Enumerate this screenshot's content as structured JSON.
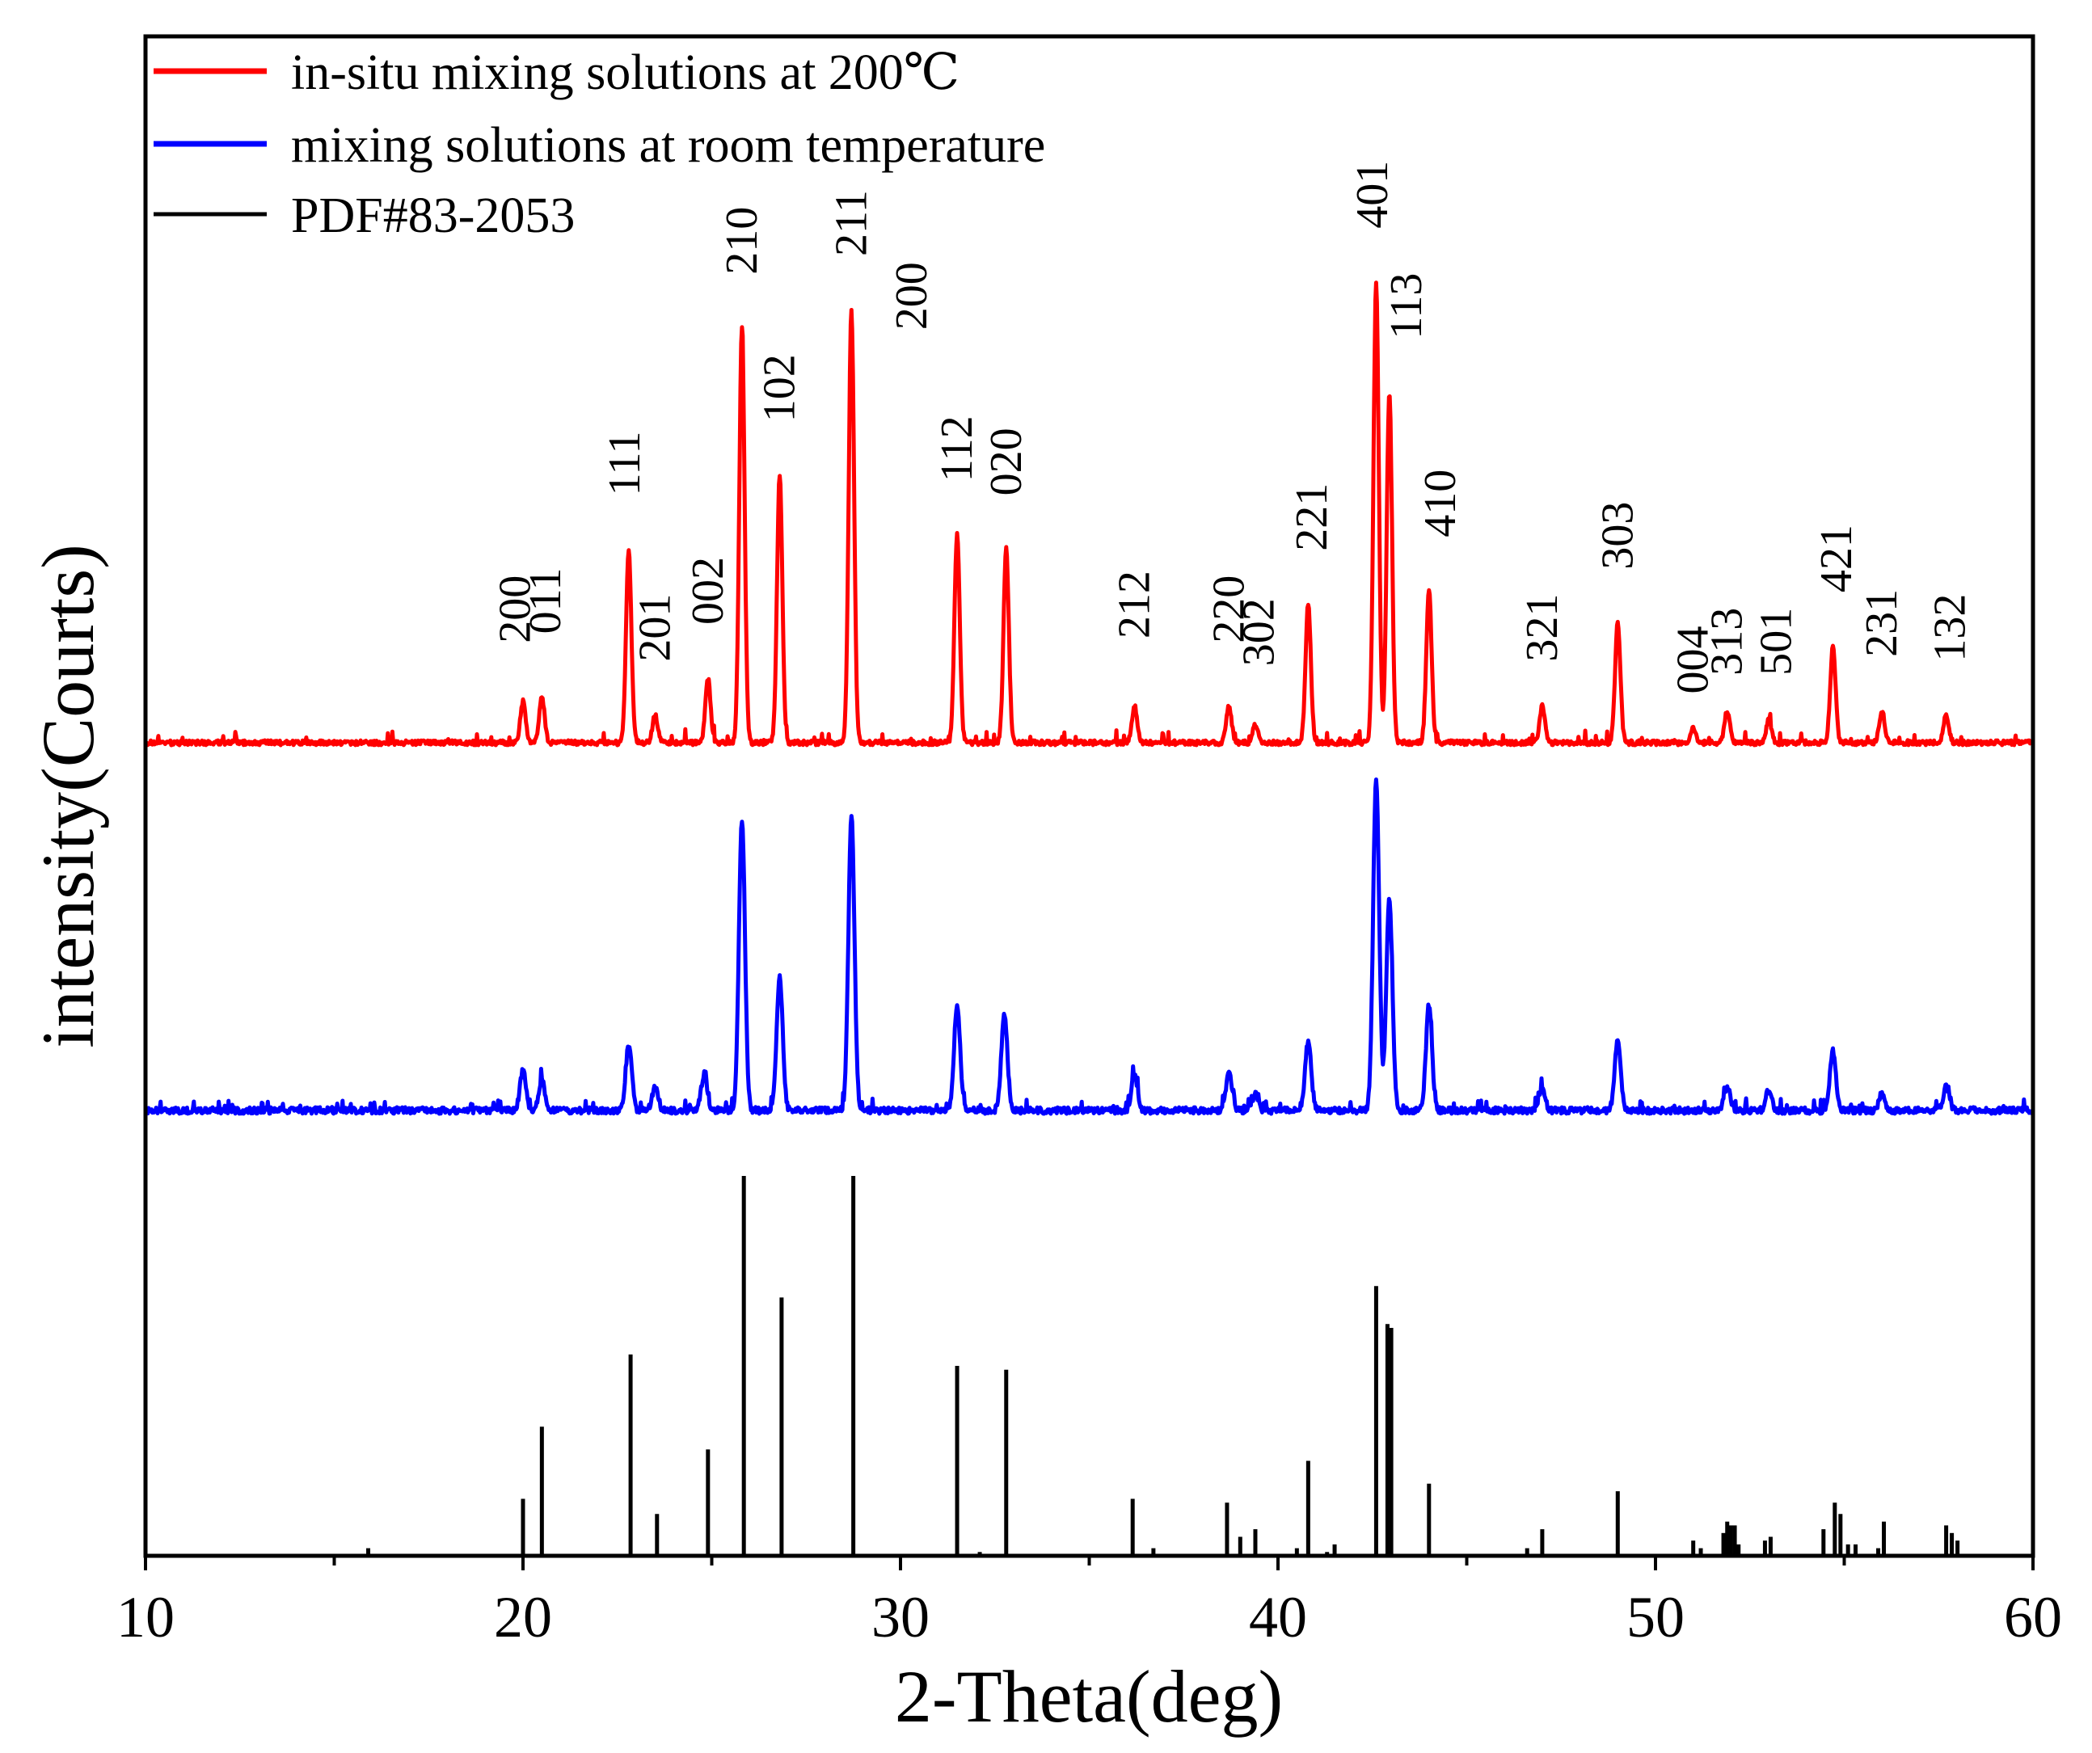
{
  "chart_data": {
    "type": "line",
    "title": "",
    "xlabel": "2-Theta(deg)",
    "ylabel": "intensity(Courts)",
    "xlim": [
      10,
      60
    ],
    "xticks": [
      "10",
      "20",
      "30",
      "40",
      "50",
      "60"
    ],
    "legend": {
      "placement": "top-left",
      "entries": [
        {
          "label": "in-situ mixing solutions at 200℃",
          "color": "#ff0000"
        },
        {
          "label": "mixing solutions at room temperature",
          "color": "#0000ff"
        },
        {
          "label": "PDF#83-2053",
          "color": "#000000"
        }
      ]
    },
    "series": [
      {
        "name": "in-situ mixing solutions at 200℃",
        "color": "#ff0000",
        "peaks": [
          {
            "x": 20.0,
            "h": 0.09
          },
          {
            "x": 20.5,
            "h": 0.1
          },
          {
            "x": 22.8,
            "h": 0.42
          },
          {
            "x": 23.5,
            "h": 0.06
          },
          {
            "x": 24.9,
            "h": 0.14
          },
          {
            "x": 25.8,
            "h": 0.9
          },
          {
            "x": 26.8,
            "h": 0.58
          },
          {
            "x": 28.7,
            "h": 0.94
          },
          {
            "x": 31.5,
            "h": 0.45
          },
          {
            "x": 32.8,
            "h": 0.42
          },
          {
            "x": 36.2,
            "h": 0.08
          },
          {
            "x": 38.7,
            "h": 0.08
          },
          {
            "x": 39.4,
            "h": 0.04
          },
          {
            "x": 40.8,
            "h": 0.3
          },
          {
            "x": 42.6,
            "h": 1.0
          },
          {
            "x": 42.95,
            "h": 0.76
          },
          {
            "x": 44.0,
            "h": 0.33
          },
          {
            "x": 47.0,
            "h": 0.08
          },
          {
            "x": 49.0,
            "h": 0.26
          },
          {
            "x": 51.0,
            "h": 0.03
          },
          {
            "x": 51.9,
            "h": 0.07
          },
          {
            "x": 53.0,
            "h": 0.05
          },
          {
            "x": 54.7,
            "h": 0.21
          },
          {
            "x": 56.0,
            "h": 0.07
          },
          {
            "x": 57.7,
            "h": 0.06
          }
        ]
      },
      {
        "name": "mixing solutions at room temperature",
        "color": "#0000ff",
        "peaks": [
          {
            "x": 20.0,
            "h": 0.12
          },
          {
            "x": 20.5,
            "h": 0.09
          },
          {
            "x": 22.8,
            "h": 0.2
          },
          {
            "x": 23.5,
            "h": 0.07
          },
          {
            "x": 24.8,
            "h": 0.11
          },
          {
            "x": 25.8,
            "h": 0.88
          },
          {
            "x": 26.8,
            "h": 0.4
          },
          {
            "x": 28.7,
            "h": 0.89
          },
          {
            "x": 31.5,
            "h": 0.32
          },
          {
            "x": 32.75,
            "h": 0.29
          },
          {
            "x": 36.2,
            "h": 0.11
          },
          {
            "x": 38.7,
            "h": 0.11
          },
          {
            "x": 39.4,
            "h": 0.05
          },
          {
            "x": 40.8,
            "h": 0.21
          },
          {
            "x": 42.6,
            "h": 1.0
          },
          {
            "x": 42.95,
            "h": 0.64
          },
          {
            "x": 44.0,
            "h": 0.32
          },
          {
            "x": 47.0,
            "h": 0.07
          },
          {
            "x": 49.0,
            "h": 0.21
          },
          {
            "x": 51.9,
            "h": 0.07
          },
          {
            "x": 53.0,
            "h": 0.06
          },
          {
            "x": 54.7,
            "h": 0.18
          },
          {
            "x": 56.0,
            "h": 0.05
          },
          {
            "x": 57.7,
            "h": 0.07
          }
        ]
      },
      {
        "name": "PDF#83-2053",
        "color": "#000000",
        "sticks": [
          {
            "x": 15.9,
            "h": 0.02
          },
          {
            "x": 20.0,
            "h": 0.15
          },
          {
            "x": 20.5,
            "h": 0.34
          },
          {
            "x": 22.85,
            "h": 0.53
          },
          {
            "x": 23.55,
            "h": 0.11
          },
          {
            "x": 24.9,
            "h": 0.28
          },
          {
            "x": 25.85,
            "h": 1.0
          },
          {
            "x": 26.85,
            "h": 0.68
          },
          {
            "x": 28.75,
            "h": 1.0
          },
          {
            "x": 31.5,
            "h": 0.5
          },
          {
            "x": 32.1,
            "h": 0.01
          },
          {
            "x": 32.8,
            "h": 0.49
          },
          {
            "x": 36.15,
            "h": 0.15
          },
          {
            "x": 36.7,
            "h": 0.02
          },
          {
            "x": 38.65,
            "h": 0.14
          },
          {
            "x": 39.0,
            "h": 0.05
          },
          {
            "x": 39.4,
            "h": 0.07
          },
          {
            "x": 40.5,
            "h": 0.02
          },
          {
            "x": 40.8,
            "h": 0.25
          },
          {
            "x": 41.3,
            "h": 0.01
          },
          {
            "x": 41.5,
            "h": 0.03
          },
          {
            "x": 42.6,
            "h": 0.71
          },
          {
            "x": 42.9,
            "h": 0.61
          },
          {
            "x": 43.0,
            "h": 0.6
          },
          {
            "x": 44.0,
            "h": 0.19
          },
          {
            "x": 46.6,
            "h": 0.02
          },
          {
            "x": 47.0,
            "h": 0.07
          },
          {
            "x": 49.0,
            "h": 0.17
          },
          {
            "x": 51.0,
            "h": 0.04
          },
          {
            "x": 51.2,
            "h": 0.02
          },
          {
            "x": 51.8,
            "h": 0.06
          },
          {
            "x": 51.9,
            "h": 0.09
          },
          {
            "x": 52.0,
            "h": 0.08
          },
          {
            "x": 52.1,
            "h": 0.08
          },
          {
            "x": 52.2,
            "h": 0.03
          },
          {
            "x": 52.9,
            "h": 0.04
          },
          {
            "x": 53.05,
            "h": 0.05
          },
          {
            "x": 54.45,
            "h": 0.07
          },
          {
            "x": 54.75,
            "h": 0.14
          },
          {
            "x": 54.9,
            "h": 0.11
          },
          {
            "x": 55.1,
            "h": 0.03
          },
          {
            "x": 55.3,
            "h": 0.03
          },
          {
            "x": 55.9,
            "h": 0.02
          },
          {
            "x": 56.05,
            "h": 0.09
          },
          {
            "x": 57.7,
            "h": 0.08
          },
          {
            "x": 57.85,
            "h": 0.06
          },
          {
            "x": 58.0,
            "h": 0.04
          }
        ]
      }
    ],
    "peak_labels": [
      {
        "text": "200",
        "x": 19.8,
        "h": 0.16
      },
      {
        "text": "011",
        "x": 20.6,
        "h": 0.18
      },
      {
        "text": "111",
        "x": 22.7,
        "h": 0.48
      },
      {
        "text": "201",
        "x": 23.5,
        "h": 0.12
      },
      {
        "text": "002",
        "x": 24.9,
        "h": 0.2
      },
      {
        "text": "210",
        "x": 25.8,
        "h": 0.96
      },
      {
        "text": "102",
        "x": 26.8,
        "h": 0.64
      },
      {
        "text": "211",
        "x": 28.7,
        "h": 1.0
      },
      {
        "text": "200",
        "x": 30.3,
        "h": 0.84
      },
      {
        "text": "112",
        "x": 31.5,
        "h": 0.51
      },
      {
        "text": "020",
        "x": 32.8,
        "h": 0.48
      },
      {
        "text": "212",
        "x": 36.2,
        "h": 0.17
      },
      {
        "text": "220",
        "x": 38.7,
        "h": 0.16
      },
      {
        "text": "302",
        "x": 39.5,
        "h": 0.11
      },
      {
        "text": "221",
        "x": 40.9,
        "h": 0.36
      },
      {
        "text": "401",
        "x": 42.5,
        "h": 1.06
      },
      {
        "text": "113",
        "x": 43.4,
        "h": 0.82
      },
      {
        "text": "410",
        "x": 44.3,
        "h": 0.39
      },
      {
        "text": "321",
        "x": 47.0,
        "h": 0.12
      },
      {
        "text": "303",
        "x": 49.0,
        "h": 0.32
      },
      {
        "text": "004",
        "x": 51.0,
        "h": 0.05
      },
      {
        "text": "313",
        "x": 51.9,
        "h": 0.09
      },
      {
        "text": "501",
        "x": 53.2,
        "h": 0.09
      },
      {
        "text": "421",
        "x": 54.8,
        "h": 0.27
      },
      {
        "text": "231",
        "x": 56.0,
        "h": 0.13
      },
      {
        "text": "132",
        "x": 57.8,
        "h": 0.12
      }
    ]
  }
}
